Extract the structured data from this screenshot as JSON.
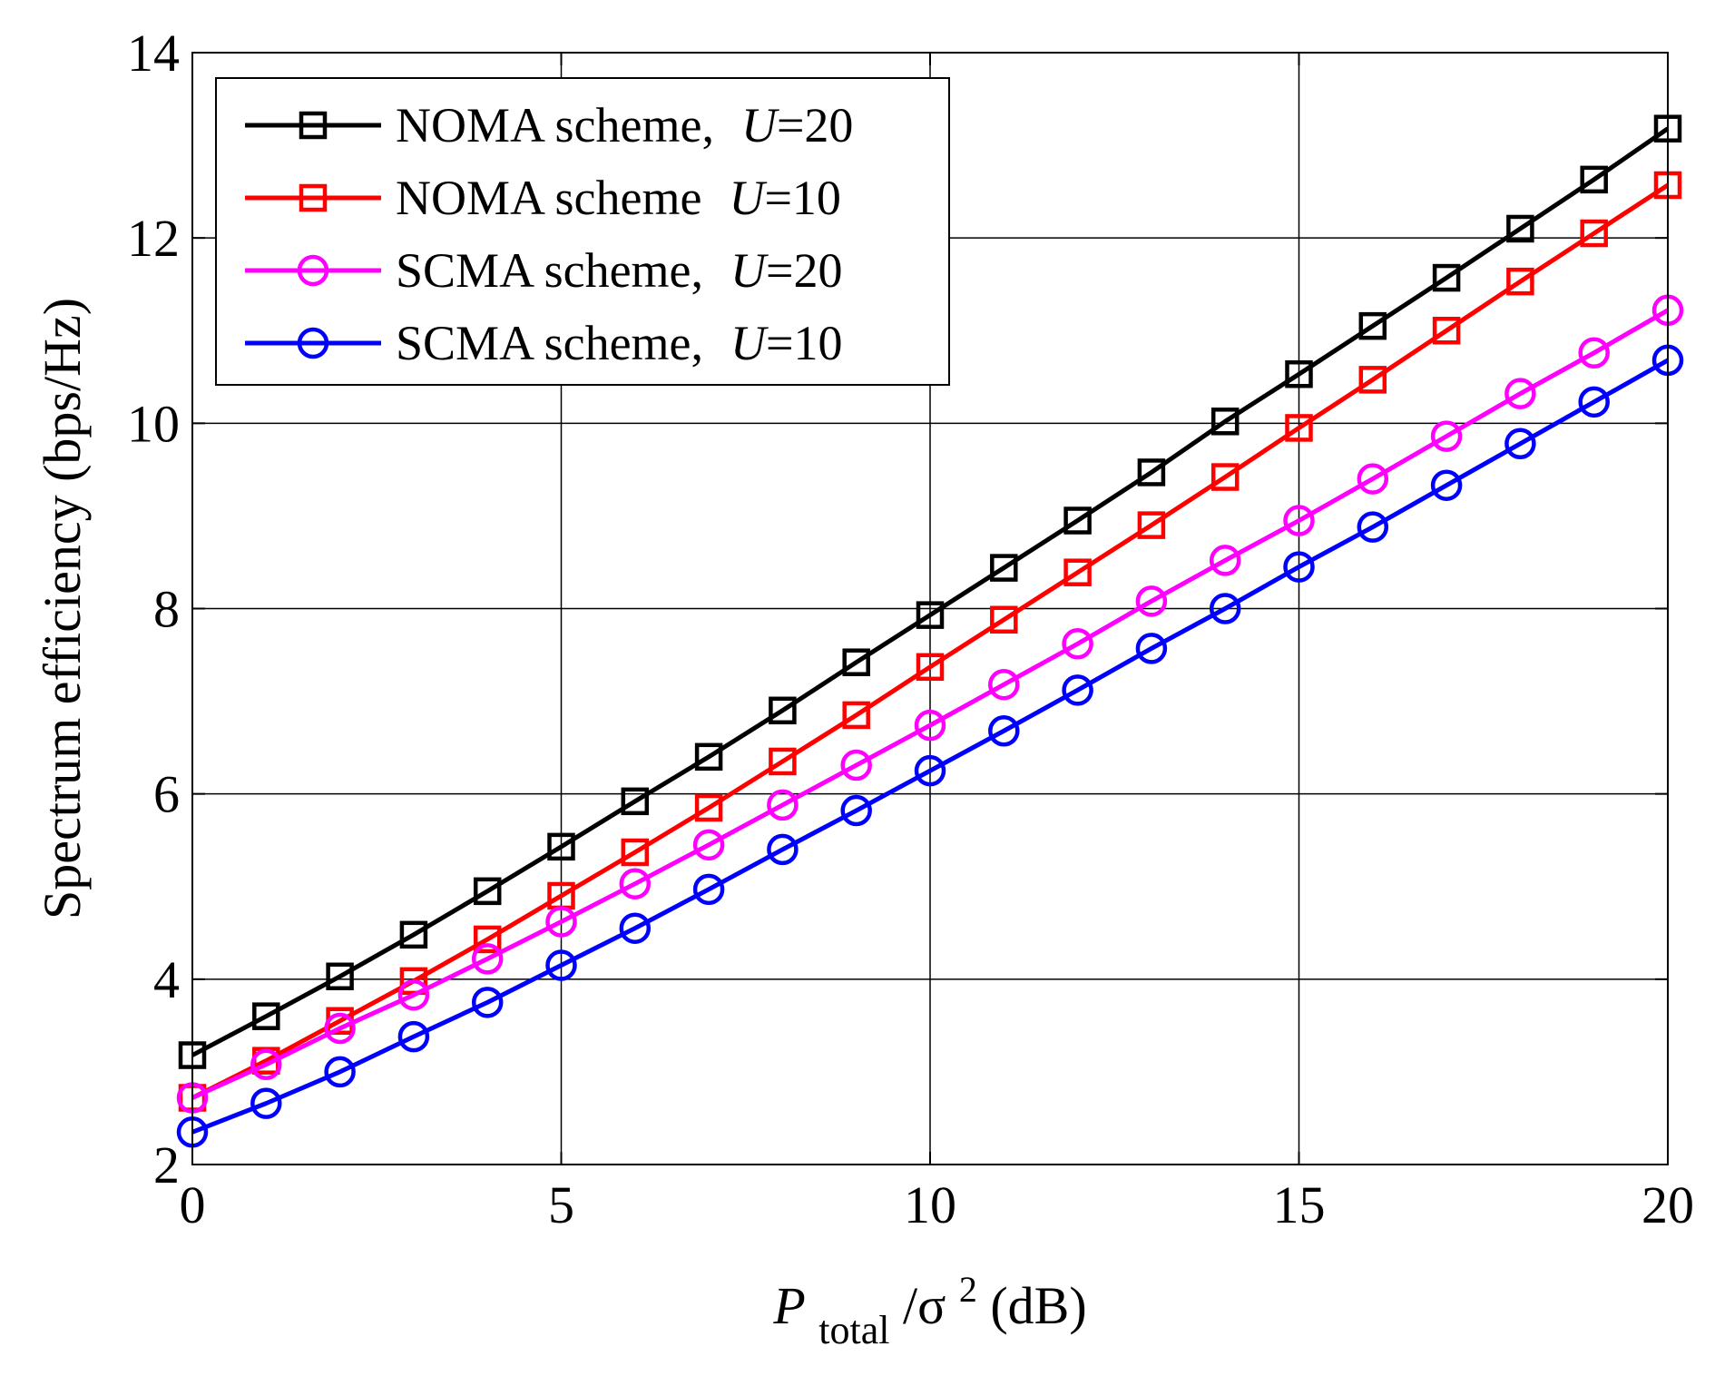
{
  "chart_data": {
    "type": "line",
    "title": "",
    "xlabel": {
      "main": "P",
      "subscript": "total",
      "rest": "/σ",
      "superscript": "2",
      "unit": " (dB)"
    },
    "ylabel": "Spectrum efficiency (bps/Hz)",
    "xlim": [
      0,
      20
    ],
    "ylim": [
      2,
      14
    ],
    "xticks": [
      0,
      5,
      10,
      15,
      20
    ],
    "yticks": [
      2,
      4,
      6,
      8,
      10,
      12,
      14
    ],
    "xtick_labels": [
      "0",
      "5",
      "10",
      "15",
      "20"
    ],
    "ytick_labels": [
      "2",
      "4",
      "6",
      "8",
      "10",
      "12",
      "14"
    ],
    "grid": true,
    "legend_position": "top-left",
    "x": [
      0,
      1,
      2,
      3,
      4,
      5,
      6,
      7,
      8,
      9,
      10,
      11,
      12,
      13,
      14,
      15,
      16,
      17,
      18,
      19,
      20
    ],
    "series": [
      {
        "name": "NOMA scheme,",
        "param": "U",
        "param_value": "=20",
        "color": "#000000",
        "marker": "square",
        "values": [
          3.18,
          3.6,
          4.03,
          4.48,
          4.95,
          5.43,
          5.92,
          6.4,
          6.9,
          7.42,
          7.93,
          8.44,
          8.95,
          9.47,
          10.02,
          10.53,
          11.05,
          11.57,
          12.1,
          12.63,
          13.18
        ]
      },
      {
        "name": "NOMA scheme",
        "param": "U",
        "param_value": "=10",
        "color": "#ff0000",
        "marker": "square",
        "values": [
          2.72,
          3.12,
          3.55,
          3.98,
          4.43,
          4.9,
          5.37,
          5.85,
          6.35,
          6.85,
          7.37,
          7.88,
          8.39,
          8.9,
          9.42,
          9.95,
          10.47,
          11.0,
          11.53,
          12.05,
          12.57
        ]
      },
      {
        "name": "SCMA scheme,",
        "param": "U",
        "param_value": "=20",
        "color": "#ff00ff",
        "marker": "circle",
        "values": [
          2.72,
          3.08,
          3.47,
          3.83,
          4.22,
          4.62,
          5.03,
          5.45,
          5.88,
          6.31,
          6.74,
          7.18,
          7.62,
          8.08,
          8.52,
          8.95,
          9.4,
          9.86,
          10.32,
          10.76,
          11.22
        ]
      },
      {
        "name": "SCMA scheme,",
        "param": "U",
        "param_value": "=10",
        "color": "#0000ff",
        "marker": "circle",
        "values": [
          2.35,
          2.66,
          3.0,
          3.38,
          3.75,
          4.15,
          4.55,
          4.97,
          5.4,
          5.82,
          6.25,
          6.68,
          7.12,
          7.57,
          8.0,
          8.45,
          8.88,
          9.33,
          9.78,
          10.23,
          10.68
        ]
      }
    ]
  }
}
